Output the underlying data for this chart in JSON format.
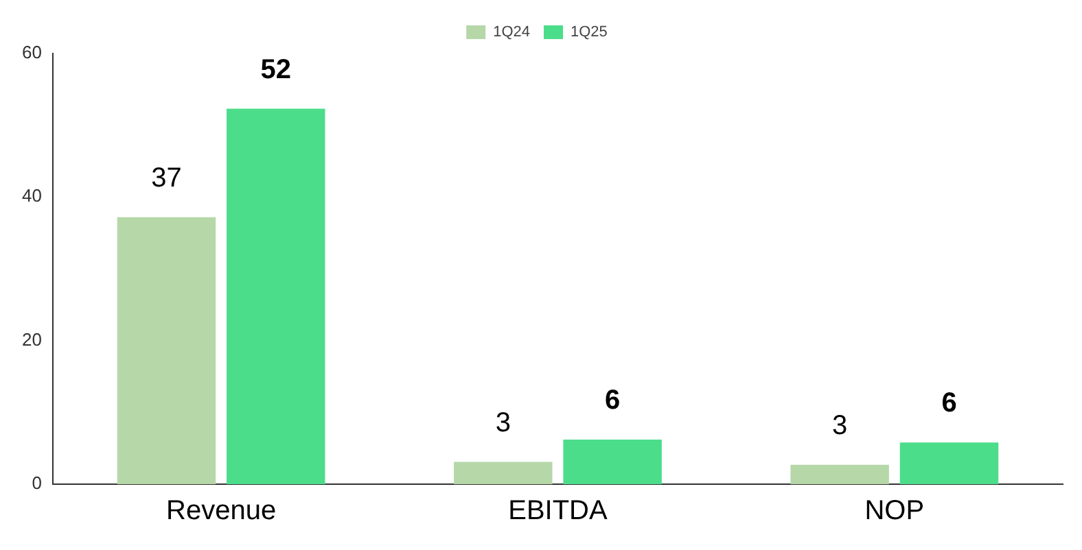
{
  "chart_data": {
    "type": "bar",
    "categories": [
      "Revenue",
      "EBITDA",
      "NOP"
    ],
    "series": [
      {
        "name": "1Q24",
        "color": "#b6d7a8",
        "values": [
          37.2,
          3.1,
          2.7
        ],
        "value_labels": [
          "37",
          "3",
          "3"
        ]
      },
      {
        "name": "1Q25",
        "color": "#4cdd8a",
        "values": [
          52.3,
          6.2,
          5.8
        ],
        "value_labels": [
          "52",
          "6",
          "6"
        ]
      }
    ],
    "ylim": [
      0,
      60
    ],
    "yticks": [
      0,
      20,
      40,
      60
    ],
    "grid": false,
    "legend": "top"
  }
}
